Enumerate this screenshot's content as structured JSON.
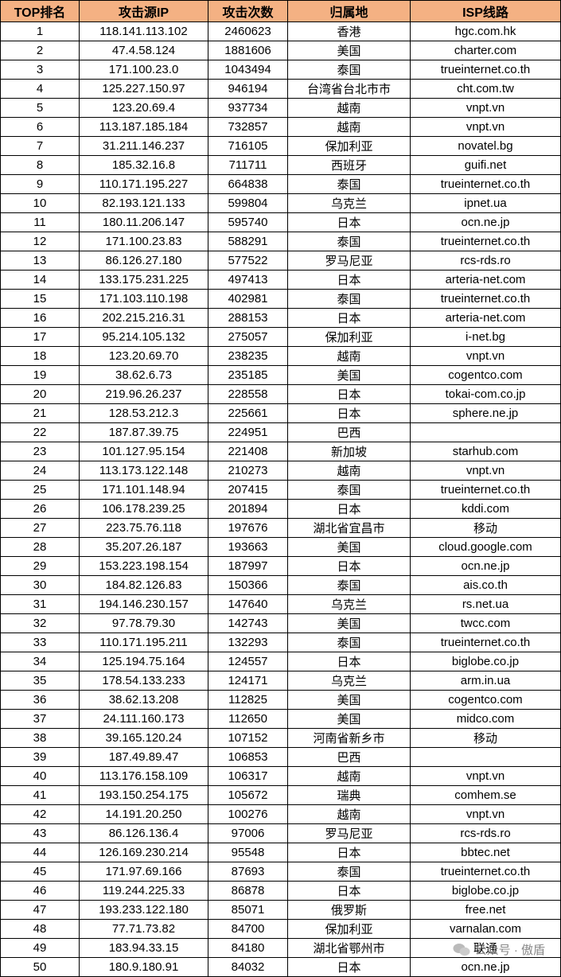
{
  "table": {
    "headers": [
      "TOP排名",
      "攻击源IP",
      "攻击次数",
      "归属地",
      "ISP线路"
    ],
    "rows": [
      [
        1,
        "118.141.113.102",
        2460623,
        "香港",
        "hgc.com.hk"
      ],
      [
        2,
        "47.4.58.124",
        1881606,
        "美国",
        "charter.com"
      ],
      [
        3,
        "171.100.23.0",
        1043494,
        "泰国",
        "trueinternet.co.th"
      ],
      [
        4,
        "125.227.150.97",
        946194,
        "台湾省台北市市",
        "cht.com.tw"
      ],
      [
        5,
        "123.20.69.4",
        937734,
        "越南",
        "vnpt.vn"
      ],
      [
        6,
        "113.187.185.184",
        732857,
        "越南",
        "vnpt.vn"
      ],
      [
        7,
        "31.211.146.237",
        716105,
        "保加利亚",
        "novatel.bg"
      ],
      [
        8,
        "185.32.16.8",
        711711,
        "西班牙",
        "guifi.net"
      ],
      [
        9,
        "110.171.195.227",
        664838,
        "泰国",
        "trueinternet.co.th"
      ],
      [
        10,
        "82.193.121.133",
        599804,
        "乌克兰",
        "ipnet.ua"
      ],
      [
        11,
        "180.11.206.147",
        595740,
        "日本",
        "ocn.ne.jp"
      ],
      [
        12,
        "171.100.23.83",
        588291,
        "泰国",
        "trueinternet.co.th"
      ],
      [
        13,
        "86.126.27.180",
        577522,
        "罗马尼亚",
        "rcs-rds.ro"
      ],
      [
        14,
        "133.175.231.225",
        497413,
        "日本",
        "arteria-net.com"
      ],
      [
        15,
        "171.103.110.198",
        402981,
        "泰国",
        "trueinternet.co.th"
      ],
      [
        16,
        "202.215.216.31",
        288153,
        "日本",
        "arteria-net.com"
      ],
      [
        17,
        "95.214.105.132",
        275057,
        "保加利亚",
        "i-net.bg"
      ],
      [
        18,
        "123.20.69.70",
        238235,
        "越南",
        "vnpt.vn"
      ],
      [
        19,
        "38.62.6.73",
        235185,
        "美国",
        "cogentco.com"
      ],
      [
        20,
        "219.96.26.237",
        228558,
        "日本",
        "tokai-com.co.jp"
      ],
      [
        21,
        "128.53.212.3",
        225661,
        "日本",
        "sphere.ne.jp"
      ],
      [
        22,
        "187.87.39.75",
        224951,
        "巴西",
        null
      ],
      [
        23,
        "101.127.95.154",
        221408,
        "新加坡",
        "starhub.com"
      ],
      [
        24,
        "113.173.122.148",
        210273,
        "越南",
        "vnpt.vn"
      ],
      [
        25,
        "171.101.148.94",
        207415,
        "泰国",
        "trueinternet.co.th"
      ],
      [
        26,
        "106.178.239.25",
        201894,
        "日本",
        "kddi.com"
      ],
      [
        27,
        "223.75.76.118",
        197676,
        "湖北省宜昌市",
        "移动"
      ],
      [
        28,
        "35.207.26.187",
        193663,
        "美国",
        "cloud.google.com"
      ],
      [
        29,
        "153.223.198.154",
        187997,
        "日本",
        "ocn.ne.jp"
      ],
      [
        30,
        "184.82.126.83",
        150366,
        "泰国",
        "ais.co.th"
      ],
      [
        31,
        "194.146.230.157",
        147640,
        "乌克兰",
        "rs.net.ua"
      ],
      [
        32,
        "97.78.79.30",
        142743,
        "美国",
        "twcc.com"
      ],
      [
        33,
        "110.171.195.211",
        132293,
        "泰国",
        "trueinternet.co.th"
      ],
      [
        34,
        "125.194.75.164",
        124557,
        "日本",
        "biglobe.co.jp"
      ],
      [
        35,
        "178.54.133.233",
        124171,
        "乌克兰",
        "arm.in.ua"
      ],
      [
        36,
        "38.62.13.208",
        112825,
        "美国",
        "cogentco.com"
      ],
      [
        37,
        "24.111.160.173",
        112650,
        "美国",
        "midco.com"
      ],
      [
        38,
        "39.165.120.24",
        107152,
        "河南省新乡市",
        "移动"
      ],
      [
        39,
        "187.49.89.47",
        106853,
        "巴西",
        null
      ],
      [
        40,
        "113.176.158.109",
        106317,
        "越南",
        "vnpt.vn"
      ],
      [
        41,
        "193.150.254.175",
        105672,
        "瑞典",
        "comhem.se"
      ],
      [
        42,
        "14.191.20.250",
        100276,
        "越南",
        "vnpt.vn"
      ],
      [
        43,
        "86.126.136.4",
        97006,
        "罗马尼亚",
        "rcs-rds.ro"
      ],
      [
        44,
        "126.169.230.214",
        95548,
        "日本",
        "bbtec.net"
      ],
      [
        45,
        "171.97.69.166",
        87693,
        "泰国",
        "trueinternet.co.th"
      ],
      [
        46,
        "119.244.225.33",
        86878,
        "日本",
        "biglobe.co.jp"
      ],
      [
        47,
        "193.233.122.180",
        85071,
        "俄罗斯",
        "free.net"
      ],
      [
        48,
        "77.71.73.82",
        84700,
        "保加利亚",
        "varnalan.com"
      ],
      [
        49,
        "183.94.33.15",
        84180,
        "湖北省鄂州市",
        "联通"
      ],
      [
        50,
        "180.9.180.91",
        84032,
        "日本",
        "ocn.ne.jp"
      ]
    ]
  },
  "watermark": "公众号 · 傲盾"
}
